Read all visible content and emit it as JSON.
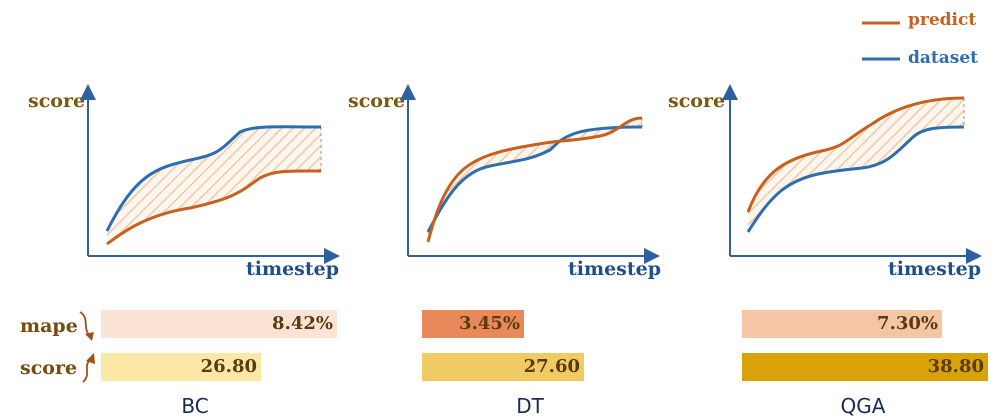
{
  "legend": {
    "predict_label": "predict",
    "dataset_label": "dataset",
    "predict_color": "#c8601e",
    "dataset_color": "#2e6db0"
  },
  "axis_labels": {
    "y": "score",
    "x": "timestep"
  },
  "rows": {
    "mape_label": "mape",
    "score_label": "score"
  },
  "panels": [
    {
      "name": "BC",
      "mape": "8.42%",
      "mape_value": 8.42,
      "score": "26.80",
      "score_value": 26.8,
      "mape_color": "#fbe4d6",
      "score_color": "#fce8a6"
    },
    {
      "name": "DT",
      "mape": "3.45%",
      "mape_value": 3.45,
      "score": "27.60",
      "score_value": 27.6,
      "mape_color": "#e9895a",
      "score_color": "#f0cb64"
    },
    {
      "name": "QGA",
      "mape": "7.30%",
      "mape_value": 7.3,
      "score": "38.80",
      "score_value": 38.8,
      "mape_color": "#f5c6a6",
      "score_color": "#d9a209"
    }
  ]
}
